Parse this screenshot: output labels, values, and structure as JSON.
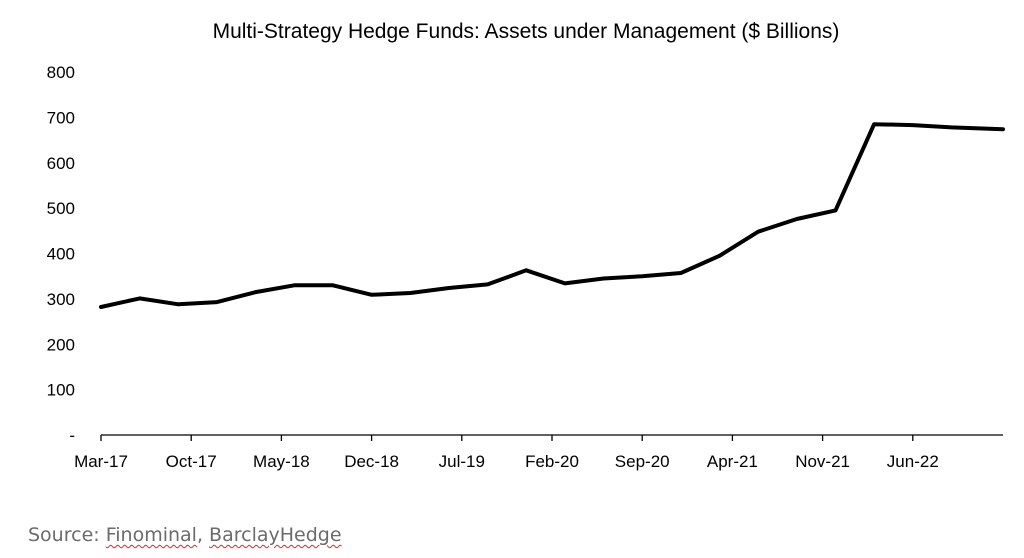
{
  "chart_data": {
    "type": "line",
    "title": "Multi-Strategy Hedge Funds: Assets under Management ($ Billions)",
    "xlabel": "",
    "ylabel": "",
    "ylim": [
      0,
      800
    ],
    "y_ticks": [
      {
        "value": 0,
        "label": "-"
      },
      {
        "value": 100,
        "label": "100"
      },
      {
        "value": 200,
        "label": "200"
      },
      {
        "value": 300,
        "label": "300"
      },
      {
        "value": 400,
        "label": "400"
      },
      {
        "value": 500,
        "label": "500"
      },
      {
        "value": 600,
        "label": "600"
      },
      {
        "value": 700,
        "label": "700"
      },
      {
        "value": 800,
        "label": "800"
      }
    ],
    "x_tick_labels": [
      "Mar-17",
      "Oct-17",
      "May-18",
      "Dec-18",
      "Jul-19",
      "Feb-20",
      "Sep-20",
      "Apr-21",
      "Nov-21",
      "Jun-22"
    ],
    "x_range": [
      "Mar-17",
      "Jan-23"
    ],
    "grid": false,
    "legend": "none",
    "line_color": "#000000",
    "series": [
      {
        "x": [
          "Mar-17",
          "Jun-17",
          "Sep-17",
          "Dec-17",
          "Mar-18",
          "Jun-18",
          "Sep-18",
          "Dec-18",
          "Mar-19",
          "Jun-19",
          "Sep-19",
          "Dec-19",
          "Mar-20",
          "Jun-20",
          "Sep-20",
          "Dec-20",
          "Mar-21",
          "Jun-21",
          "Sep-21",
          "Dec-21",
          "Mar-22",
          "Jun-22",
          "Sep-22",
          "Jan-23"
        ],
        "values": [
          282,
          301,
          288,
          293,
          315,
          330,
          330,
          309,
          313,
          324,
          332,
          363,
          334,
          345,
          350,
          357,
          395,
          448,
          476,
          495,
          685,
          683,
          678,
          674
        ]
      }
    ]
  },
  "source": {
    "prefix": "Source: ",
    "name1": "Finominal",
    "separator": ", ",
    "name2": "BarclayHedge"
  }
}
